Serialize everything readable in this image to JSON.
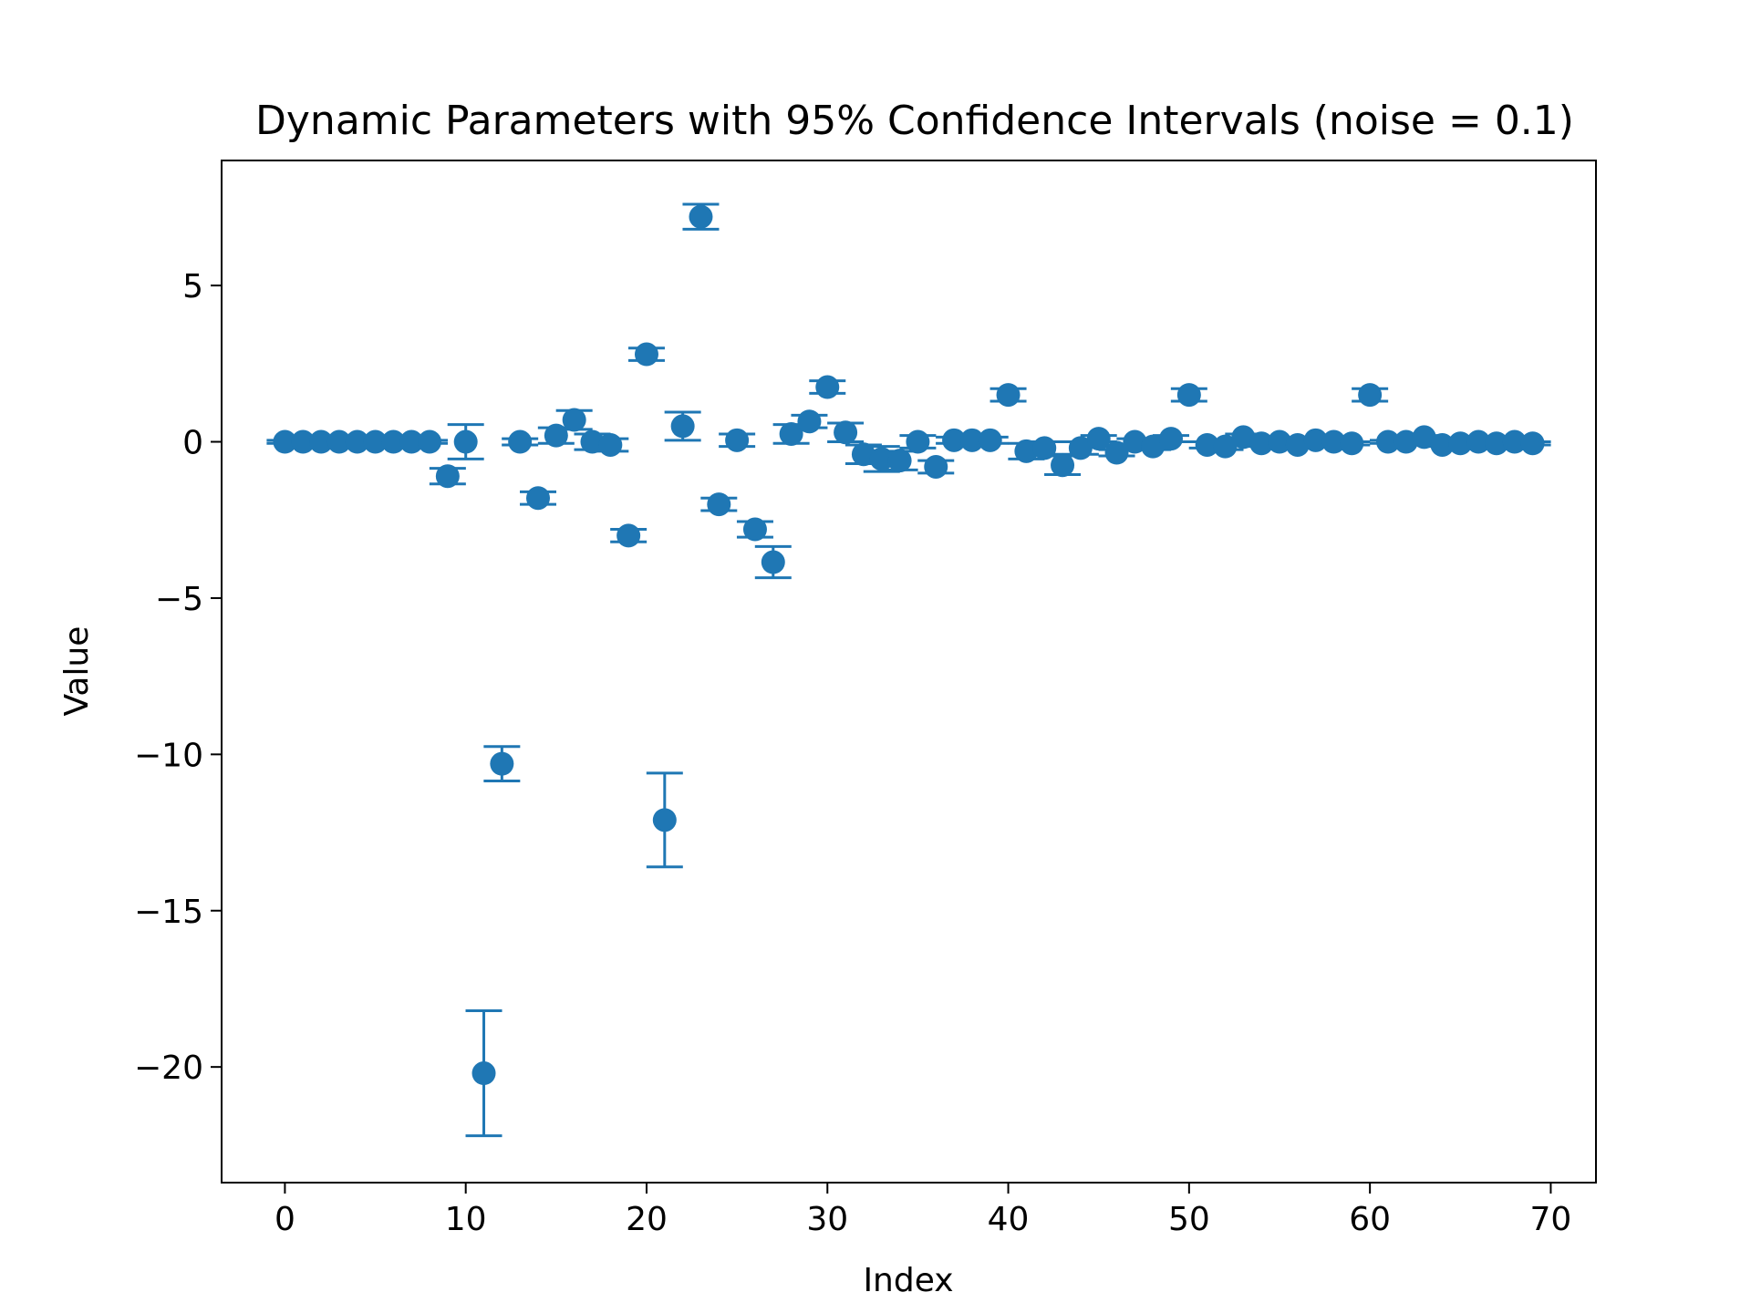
{
  "chart_data": {
    "type": "scatter",
    "title": "Dynamic Parameters with 95% Confidence Intervals (noise = 0.1)",
    "xlabel": "Index",
    "ylabel": "Value",
    "xlim": [
      -3.5,
      72.5
    ],
    "ylim": [
      -23.7,
      9
    ],
    "xticks": [
      0,
      10,
      20,
      30,
      40,
      50,
      60,
      70
    ],
    "yticks": [
      5,
      0,
      -5,
      -10,
      -15,
      -20
    ],
    "ytick_labels": [
      "5",
      "0",
      "−5",
      "−10",
      "−15",
      "−20"
    ],
    "grid": false,
    "color": "#1f77b4",
    "series": [
      {
        "x": [
          0,
          1,
          2,
          3,
          4,
          5,
          6,
          7,
          8,
          9,
          10,
          11,
          12,
          13,
          14,
          15,
          16,
          17,
          18,
          19,
          20,
          21,
          22,
          23,
          24,
          25,
          26,
          27,
          28,
          29,
          30,
          31,
          32,
          33,
          34,
          35,
          36,
          37,
          38,
          39,
          40,
          41,
          42,
          43,
          44,
          45,
          46,
          47,
          48,
          49,
          50,
          51,
          52,
          53,
          54,
          55,
          56,
          57,
          58,
          59,
          60,
          61,
          62,
          63,
          64,
          65,
          66,
          67,
          68,
          69
        ],
        "y": [
          0,
          0,
          0,
          0,
          0,
          0,
          0,
          0,
          0,
          -1.1,
          0,
          -20.2,
          -10.3,
          0,
          -1.8,
          0.2,
          0.7,
          0,
          -0.1,
          -3.0,
          2.8,
          -12.1,
          0.5,
          7.2,
          -2.0,
          0.05,
          -2.8,
          -3.85,
          0.25,
          0.65,
          1.75,
          0.3,
          -0.4,
          -0.55,
          -0.6,
          0,
          -0.8,
          0.05,
          0.05,
          0.05,
          1.5,
          -0.3,
          -0.2,
          -0.75,
          -0.2,
          0.1,
          -0.35,
          0,
          -0.15,
          0.1,
          1.5,
          -0.1,
          -0.15,
          0.15,
          -0.05,
          0,
          -0.1,
          0.05,
          0,
          -0.05,
          1.5,
          0,
          0,
          0.15,
          -0.1,
          -0.05,
          0,
          -0.05,
          0,
          -0.05
        ],
        "err": [
          0.05,
          0.05,
          0.05,
          0.05,
          0.05,
          0.05,
          0.05,
          0.05,
          0.05,
          0.25,
          0.55,
          2.0,
          0.55,
          0.1,
          0.2,
          0.25,
          0.3,
          0.25,
          0.2,
          0.2,
          0.2,
          1.5,
          0.45,
          0.4,
          0.2,
          0.2,
          0.25,
          0.5,
          0.3,
          0.2,
          0.2,
          0.3,
          0.3,
          0.4,
          0.3,
          0.2,
          0.2,
          0.1,
          0.1,
          0.1,
          0.2,
          0.25,
          0.2,
          0.3,
          0.2,
          0.1,
          0.1,
          0.1,
          0.1,
          0.1,
          0.2,
          0.1,
          0.1,
          0.1,
          0.1,
          0.1,
          0.1,
          0.1,
          0.05,
          0.05,
          0.2,
          0.05,
          0.05,
          0.05,
          0.05,
          0.05,
          0.05,
          0.05,
          0.05,
          0.05
        ]
      }
    ]
  }
}
